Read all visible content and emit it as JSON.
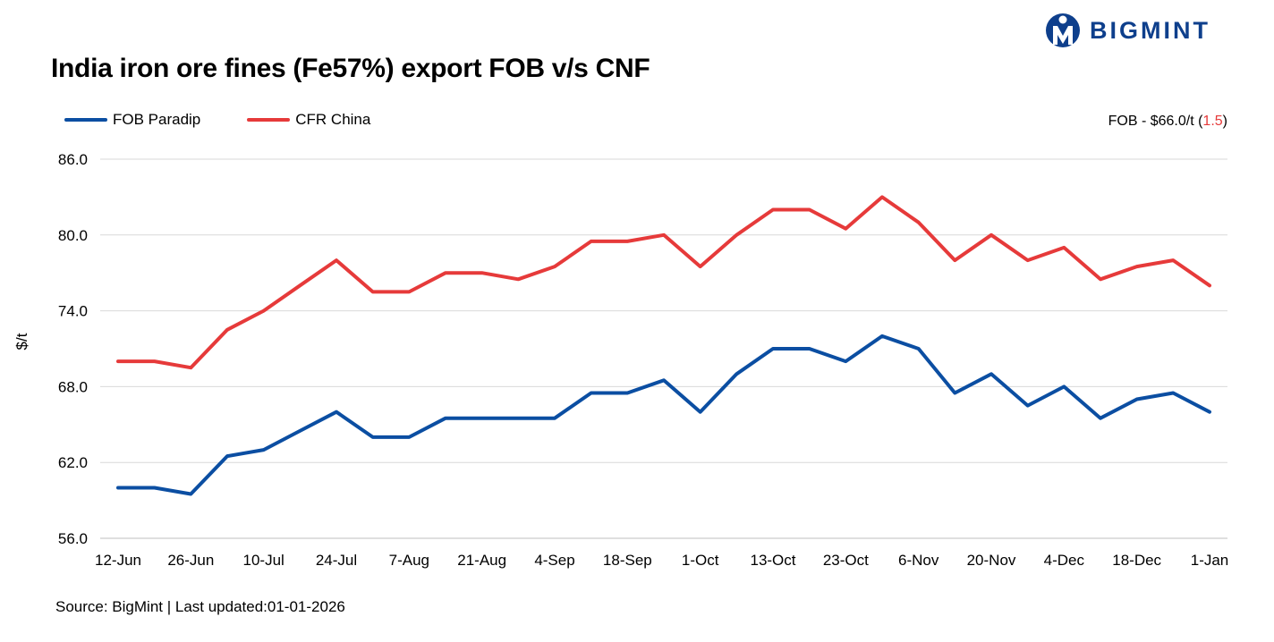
{
  "header": {
    "title": "India iron ore fines (Fe57%) export FOB v/s CNF",
    "brand": "BIGMINT",
    "logo_icon": "bigmint-logo-icon"
  },
  "fob_note": {
    "prefix": "FOB - $66.0/t (",
    "change": "1.5",
    "suffix": ")",
    "change_color": "#e63a3a"
  },
  "footer": {
    "source": "Source: BigMint | Last updated:01-01-2026"
  },
  "chart_data": {
    "type": "line",
    "ylabel": "$/t",
    "xlabel": "",
    "ylim": [
      56.0,
      86.0
    ],
    "yticks": [
      "56.0",
      "62.0",
      "68.0",
      "74.0",
      "80.0",
      "86.0"
    ],
    "ytick_values": [
      56,
      62,
      68,
      74,
      80,
      86
    ],
    "grid": true,
    "legend_position": "top-left",
    "x_tick_labels": [
      "12-Jun",
      "26-Jun",
      "10-Jul",
      "24-Jul",
      "7-Aug",
      "21-Aug",
      "4-Sep",
      "18-Sep",
      "1-Oct",
      "13-Oct",
      "23-Oct",
      "6-Nov",
      "20-Nov",
      "4-Dec",
      "18-Dec",
      "1-Jan"
    ],
    "series": [
      {
        "name": "FOB Paradip",
        "color": "#0b4ea2",
        "values": [
          60.0,
          60.0,
          59.5,
          62.5,
          63.0,
          64.5,
          66.0,
          64.0,
          64.0,
          65.5,
          65.5,
          65.5,
          65.5,
          67.5,
          67.5,
          68.5,
          66.0,
          69.0,
          71.0,
          71.0,
          70.0,
          72.0,
          71.0,
          67.5,
          69.0,
          66.5,
          68.0,
          65.5,
          67.0,
          67.5,
          66.0
        ]
      },
      {
        "name": "CFR China",
        "color": "#e63a3a",
        "values": [
          70.0,
          70.0,
          69.5,
          72.5,
          74.0,
          76.0,
          78.0,
          75.5,
          75.5,
          77.0,
          77.0,
          76.5,
          77.5,
          79.5,
          79.5,
          80.0,
          77.5,
          80.0,
          82.0,
          82.0,
          80.5,
          83.0,
          81.0,
          78.0,
          80.0,
          78.0,
          79.0,
          76.5,
          77.5,
          78.0,
          76.0
        ]
      }
    ]
  }
}
